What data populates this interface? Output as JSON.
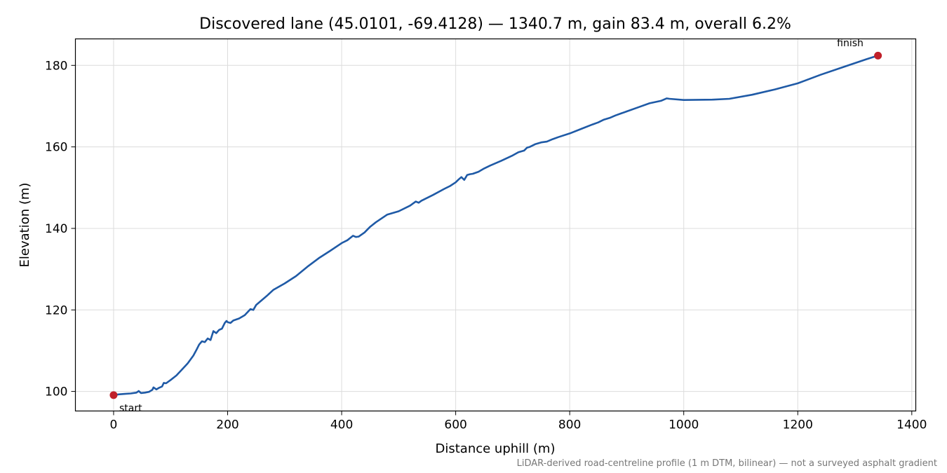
{
  "chart_data": {
    "type": "line",
    "title": "Discovered lane (45.0101, -69.4128) — 1340.7 m, gain 83.4 m, overall 6.2%",
    "xlabel": "Distance uphill (m)",
    "ylabel": "Elevation (m)",
    "xlim": [
      -67,
      1407
    ],
    "ylim": [
      95.2,
      186.5
    ],
    "xticks": [
      0,
      200,
      400,
      600,
      800,
      1000,
      1200,
      1400
    ],
    "yticks": [
      100,
      120,
      140,
      160,
      180
    ],
    "grid": true,
    "line_color": "#1f5aa6",
    "marker_color": "#c0202a",
    "series": [
      {
        "x": [
          0,
          10,
          20,
          30,
          40,
          44,
          48,
          55,
          62,
          68,
          70,
          75,
          80,
          85,
          88,
          92,
          100,
          110,
          120,
          130,
          140,
          145,
          150,
          155,
          160,
          165,
          170,
          175,
          180,
          185,
          190,
          195,
          198,
          200,
          205,
          210,
          220,
          230,
          240,
          245,
          250,
          255,
          260,
          270,
          280,
          300,
          320,
          340,
          360,
          380,
          400,
          410,
          420,
          425,
          430,
          440,
          450,
          460,
          480,
          500,
          520,
          530,
          535,
          540,
          560,
          580,
          590,
          600,
          605,
          610,
          615,
          620,
          625,
          630,
          640,
          650,
          660,
          680,
          700,
          710,
          720,
          725,
          730,
          740,
          750,
          760,
          770,
          780,
          800,
          820,
          840,
          850,
          860,
          870,
          880,
          890,
          900,
          920,
          940,
          960,
          970,
          975,
          1000,
          1050,
          1080,
          1120,
          1160,
          1200,
          1240,
          1280,
          1320,
          1340.7
        ],
        "y": [
          99.1,
          99.3,
          99.4,
          99.5,
          99.7,
          100.1,
          99.6,
          99.7,
          99.9,
          100.4,
          101.0,
          100.5,
          100.9,
          101.2,
          102.1,
          102.0,
          102.8,
          103.9,
          105.4,
          106.9,
          108.8,
          110.1,
          111.5,
          112.3,
          112.1,
          113.0,
          112.6,
          114.8,
          114.3,
          115.1,
          115.4,
          116.8,
          117.3,
          117.0,
          116.8,
          117.4,
          117.9,
          118.7,
          120.2,
          120.0,
          121.2,
          121.8,
          122.4,
          123.6,
          124.9,
          126.5,
          128.3,
          130.6,
          132.7,
          134.5,
          136.4,
          137.1,
          138.2,
          137.9,
          138.0,
          139.0,
          140.4,
          141.5,
          143.4,
          144.2,
          145.6,
          146.6,
          146.3,
          146.8,
          148.2,
          149.7,
          150.4,
          151.3,
          152.0,
          152.6,
          151.9,
          153.1,
          153.3,
          153.4,
          153.9,
          154.7,
          155.4,
          156.6,
          157.9,
          158.7,
          159.1,
          159.8,
          160.0,
          160.7,
          161.1,
          161.3,
          161.9,
          162.4,
          163.3,
          164.4,
          165.5,
          166.0,
          166.7,
          167.1,
          167.7,
          168.2,
          168.7,
          169.7,
          170.7,
          171.3,
          171.9,
          171.8,
          171.5,
          171.6,
          171.8,
          172.8,
          174.1,
          175.6,
          177.7,
          179.6,
          181.5,
          182.4
        ]
      }
    ],
    "annotations": [
      {
        "label": "start",
        "x": 0,
        "y": 99.1
      },
      {
        "label": "finish",
        "x": 1340.7,
        "y": 182.4
      }
    ],
    "footnote": "LiDAR-derived road-centreline profile (1 m DTM, bilinear) — not a surveyed asphalt gradient"
  }
}
